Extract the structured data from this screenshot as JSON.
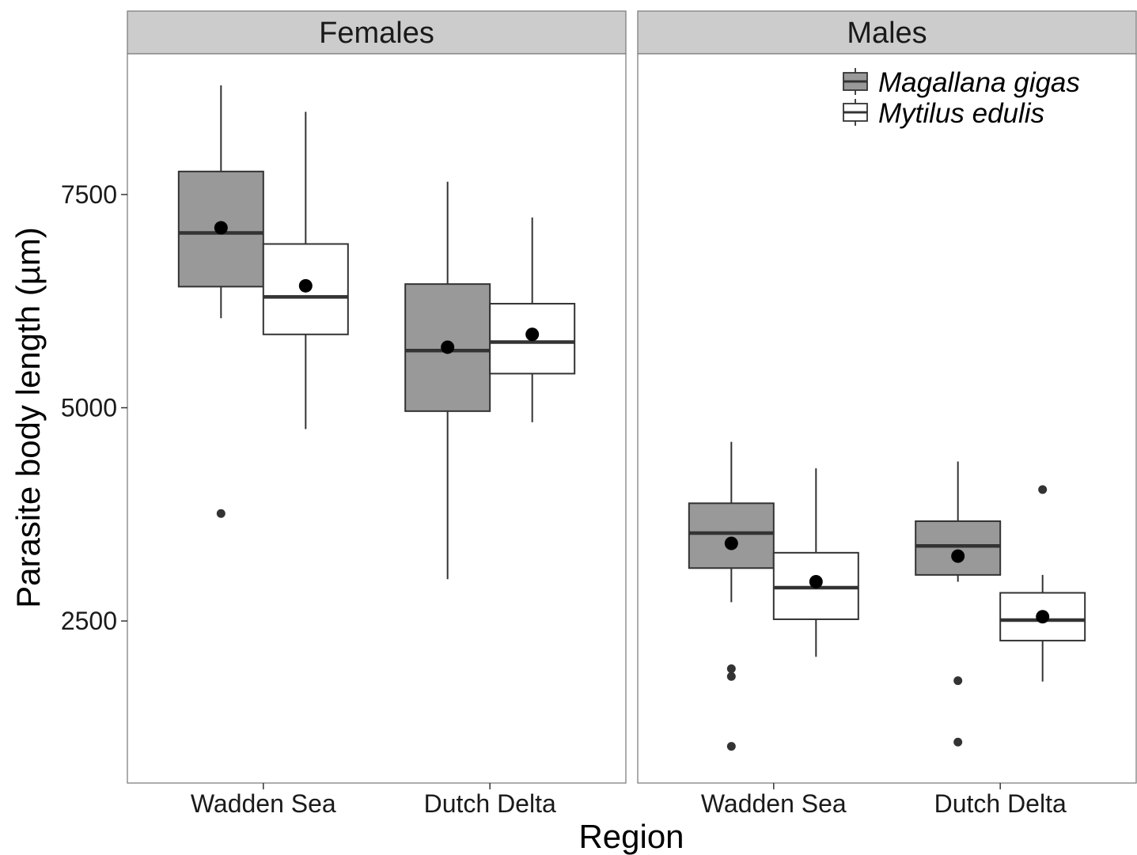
{
  "chart_data": {
    "type": "boxplot",
    "xlabel": "Region",
    "ylabel": "Parasite body length (µm)",
    "ylim": [
      600,
      9150
    ],
    "yticks": [
      2500,
      5000,
      7500
    ],
    "categories": [
      "Wadden Sea",
      "Dutch Delta"
    ],
    "facets": [
      "Females",
      "Males"
    ],
    "legend": {
      "position": "top-right",
      "entries": [
        {
          "name": "Magallana gigas",
          "fill": "#999999"
        },
        {
          "name": "Mytilus edulis",
          "fill": "#ffffff"
        }
      ]
    },
    "grid": false,
    "series": [
      {
        "facet": "Females",
        "region": "Wadden Sea",
        "species": "Magallana gigas",
        "whisker_low": 6050,
        "q1": 6420,
        "median": 7050,
        "q3": 7770,
        "whisker_high": 8780,
        "mean": 7110,
        "outliers": [
          3760
        ]
      },
      {
        "facet": "Females",
        "region": "Wadden Sea",
        "species": "Mytilus edulis",
        "whisker_low": 4750,
        "q1": 5860,
        "median": 6300,
        "q3": 6920,
        "whisker_high": 8470,
        "mean": 6430,
        "outliers": []
      },
      {
        "facet": "Females",
        "region": "Dutch Delta",
        "species": "Magallana gigas",
        "whisker_low": 2990,
        "q1": 4960,
        "median": 5670,
        "q3": 6450,
        "whisker_high": 7650,
        "mean": 5710,
        "outliers": []
      },
      {
        "facet": "Females",
        "region": "Dutch Delta",
        "species": "Mytilus edulis",
        "whisker_low": 4830,
        "q1": 5400,
        "median": 5770,
        "q3": 6220,
        "whisker_high": 7230,
        "mean": 5860,
        "outliers": []
      },
      {
        "facet": "Males",
        "region": "Wadden Sea",
        "species": "Magallana gigas",
        "whisker_low": 2720,
        "q1": 3120,
        "median": 3530,
        "q3": 3880,
        "whisker_high": 4600,
        "mean": 3410,
        "outliers": [
          1940,
          1850,
          1030
        ]
      },
      {
        "facet": "Males",
        "region": "Wadden Sea",
        "species": "Mytilus edulis",
        "whisker_low": 2080,
        "q1": 2520,
        "median": 2890,
        "q3": 3300,
        "whisker_high": 4290,
        "mean": 2960,
        "outliers": []
      },
      {
        "facet": "Males",
        "region": "Dutch Delta",
        "species": "Magallana gigas",
        "whisker_low": 2960,
        "q1": 3040,
        "median": 3380,
        "q3": 3670,
        "whisker_high": 4370,
        "mean": 3260,
        "outliers": [
          1800,
          1080
        ]
      },
      {
        "facet": "Males",
        "region": "Dutch Delta",
        "species": "Mytilus edulis",
        "whisker_low": 1790,
        "q1": 2270,
        "median": 2510,
        "q3": 2830,
        "whisker_high": 3040,
        "mean": 2550,
        "outliers": [
          4040
        ]
      }
    ]
  }
}
